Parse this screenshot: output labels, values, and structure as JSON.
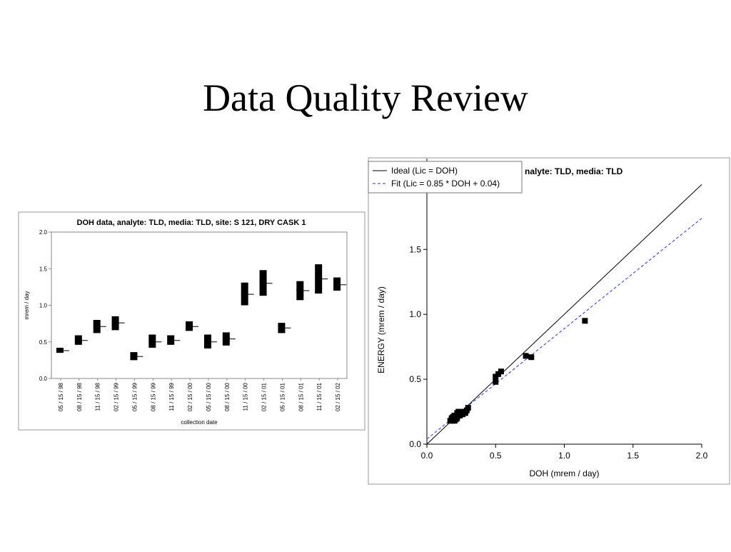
{
  "title": "Data Quality Review",
  "chart_data": [
    {
      "type": "range-bar",
      "title": "DOH data,   analyte: TLD,  media: TLD,  site: S 121, DRY CASK 1",
      "y_label": "mrem / day",
      "x_label": "collection date",
      "categories": [
        "05 / 15 / 98",
        "08 / 15 / 98",
        "11 / 15 / 98",
        "02 / 15 / 99",
        "05 / 15 / 99",
        "08 / 15 / 99",
        "11 / 15 / 99",
        "02 / 15 / 00",
        "05 / 15 / 00",
        "08 / 15 / 00",
        "11 / 15 / 00",
        "02 / 15 / 01",
        "05 / 15 / 01",
        "08 / 15 / 01",
        "11 / 15 / 01",
        "02 / 15 / 02"
      ],
      "lows": [
        0.35,
        0.46,
        0.62,
        0.66,
        0.25,
        0.42,
        0.46,
        0.65,
        0.41,
        0.45,
        1.0,
        1.13,
        0.62,
        1.07,
        1.16,
        1.2
      ],
      "highs": [
        0.42,
        0.59,
        0.8,
        0.85,
        0.36,
        0.6,
        0.59,
        0.78,
        0.6,
        0.63,
        1.31,
        1.48,
        0.76,
        1.33,
        1.56,
        1.38
      ],
      "marks": [
        0.38,
        0.52,
        0.71,
        0.76,
        0.3,
        0.5,
        0.52,
        0.71,
        0.5,
        0.54,
        1.15,
        1.3,
        0.69,
        1.2,
        1.36,
        1.28
      ],
      "color": "#000000",
      "ylim": [
        0,
        2
      ],
      "yticks": [
        {
          "value": 0,
          "label": "0.0"
        },
        0.5,
        {
          "value": 1,
          "label": "1.0"
        },
        1.5,
        {
          "value": 2,
          "label": "2.0"
        }
      ]
    },
    {
      "type": "scatter",
      "title": "nalyte: TLD, media: TLD",
      "x_label": "DOH (mrem / day)",
      "y_label": "ENERGY (mrem / day)",
      "xlim": [
        0,
        2
      ],
      "ylim": [
        0,
        2.2
      ],
      "xticks": [
        {
          "value": 0,
          "label": "0.0"
        },
        0.5,
        {
          "value": 1,
          "label": "1.0"
        },
        1.5,
        {
          "value": 2,
          "label": "2.0"
        }
      ],
      "yticks": [
        {
          "value": 0,
          "label": "0.0"
        },
        0.5,
        {
          "value": 1,
          "label": "1.0"
        },
        1.5
      ],
      "legend": "top-left",
      "series": [
        {
          "name": "Ideal (Lic = DOH)",
          "type": "line",
          "color": "#000000",
          "dash": false,
          "x": [
            0,
            2
          ],
          "y": [
            0,
            2
          ]
        },
        {
          "name": "Fit (Lic = 0.85 * DOH + 0.04)",
          "type": "line",
          "color": "#2233dd",
          "dash": true,
          "x": [
            0,
            2
          ],
          "y": [
            0.04,
            1.74
          ]
        },
        {
          "type": "points",
          "color": "#000000",
          "x": [
            0.17,
            0.18,
            0.19,
            0.2,
            0.21,
            0.22,
            0.23,
            0.24,
            0.25,
            0.26,
            0.27,
            0.28,
            0.29,
            0.3,
            0.2,
            0.22,
            0.5,
            0.5,
            0.52,
            0.54,
            0.72,
            0.76,
            1.15
          ],
          "y": [
            0.18,
            0.2,
            0.21,
            0.22,
            0.19,
            0.24,
            0.25,
            0.22,
            0.24,
            0.23,
            0.25,
            0.24,
            0.26,
            0.28,
            0.18,
            0.2,
            0.48,
            0.52,
            0.54,
            0.56,
            0.68,
            0.67,
            0.95
          ]
        }
      ]
    }
  ]
}
